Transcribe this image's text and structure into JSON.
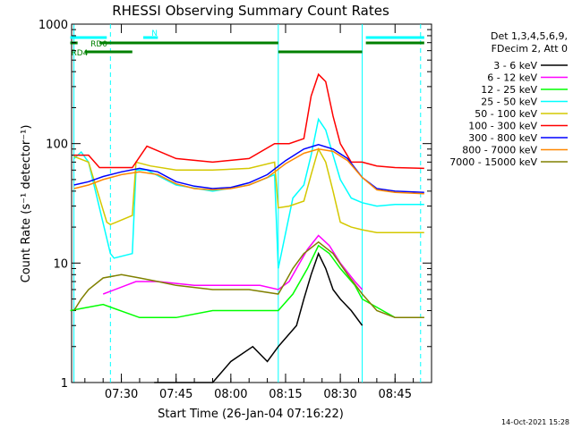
{
  "chart_data": {
    "type": "line",
    "title": "RHESSI Observing Summary Count Rates",
    "xlabel": "Start Time (26-Jan-04 07:16:22)",
    "ylabel": "Count Rate (s⁻¹ detector⁻¹)",
    "yscale": "log",
    "ylim": [
      1,
      1000
    ],
    "xlim": [
      "07:16:22",
      "08:55:00"
    ],
    "x_ticks": [
      "07:30",
      "07:45",
      "08:00",
      "08:15",
      "08:30",
      "08:45"
    ],
    "y_ticks": [
      "1",
      "10",
      "100",
      "1000"
    ],
    "grid": false,
    "legend_position": "right",
    "legend_header": [
      "Det 1,3,4,5,6,9,",
      "FDecim 2, Att 0"
    ],
    "series": [
      {
        "name": "3 - 6 keV",
        "color": "#000000",
        "x": [
          "07:16",
          "07:25",
          "07:34",
          "07:39",
          "07:55",
          "08:00",
          "08:06",
          "08:10",
          "08:13",
          "08:18",
          "08:20",
          "08:22",
          "08:24",
          "08:26",
          "08:28",
          "08:30",
          "08:33",
          "08:36"
        ],
        "y": [
          null,
          null,
          null,
          1,
          1,
          1.5,
          2.0,
          1.5,
          2.0,
          3.0,
          5.0,
          8.0,
          12.0,
          9.0,
          6.0,
          5.0,
          4.0,
          3.0
        ]
      },
      {
        "name": "6 - 12 keV",
        "color": "#ff00ff",
        "x": [
          "07:16",
          "07:25",
          "07:34",
          "07:40",
          "07:50",
          "08:00",
          "08:08",
          "08:13",
          "08:16",
          "08:18",
          "08:21",
          "08:24",
          "08:27",
          "08:30",
          "08:34",
          "08:36",
          "08:40"
        ],
        "y": [
          null,
          5.5,
          7.0,
          7.0,
          6.5,
          6.5,
          6.5,
          6.0,
          7.0,
          9.0,
          13.0,
          17.0,
          14.0,
          10.0,
          7.0,
          6.0,
          null
        ]
      },
      {
        "name": "12 - 25 keV",
        "color": "#00ff00",
        "x": [
          "07:16",
          "07:25",
          "07:35",
          "07:45",
          "07:55",
          "08:05",
          "08:13",
          "08:17",
          "08:21",
          "08:24",
          "08:27",
          "08:30",
          "08:34",
          "08:36",
          "08:45",
          "08:53"
        ],
        "y": [
          4.0,
          4.5,
          3.5,
          3.5,
          4.0,
          4.0,
          4.0,
          5.5,
          9.0,
          14.0,
          12.0,
          9.0,
          6.5,
          5.0,
          3.5,
          3.5
        ]
      },
      {
        "name": "25 - 50 keV",
        "color": "#00ffff",
        "x": [
          "07:17",
          "07:19",
          "07:21",
          "07:27",
          "07:28",
          "07:33",
          "07:34",
          "07:37",
          "07:45",
          "07:55",
          "08:05",
          "08:12",
          "08:13",
          "08:17",
          "08:20",
          "08:22",
          "08:24",
          "08:26",
          "08:28",
          "08:30",
          "08:33",
          "08:36",
          "08:40",
          "08:45",
          "08:53"
        ],
        "y": [
          75,
          85,
          70,
          12,
          11,
          12,
          60,
          60,
          45,
          40,
          45,
          55,
          9,
          35,
          45,
          80,
          160,
          130,
          80,
          50,
          35,
          32,
          30,
          31,
          31
        ]
      },
      {
        "name": "50 - 100 keV",
        "color": "#d4c800",
        "x": [
          "07:17",
          "07:21",
          "07:26",
          "07:27",
          "07:33",
          "07:34",
          "07:38",
          "07:45",
          "07:55",
          "08:05",
          "08:12",
          "08:13",
          "08:16",
          "08:20",
          "08:22",
          "08:24",
          "08:26",
          "08:28",
          "08:30",
          "08:33",
          "08:36",
          "08:40",
          "08:45",
          "08:53"
        ],
        "y": [
          78,
          70,
          22,
          21,
          25,
          70,
          65,
          60,
          60,
          62,
          70,
          29,
          30,
          33,
          55,
          90,
          70,
          40,
          22,
          20,
          19,
          18,
          18,
          18
        ]
      },
      {
        "name": "100 - 300 keV",
        "color": "#ff0000",
        "x": [
          "07:17",
          "07:21",
          "07:24",
          "07:27",
          "07:33",
          "07:37",
          "07:45",
          "07:55",
          "08:05",
          "08:12",
          "08:13",
          "08:16",
          "08:20",
          "08:22",
          "08:24",
          "08:26",
          "08:28",
          "08:30",
          "08:33",
          "08:36",
          "08:40",
          "08:45",
          "08:53"
        ],
        "y": [
          80,
          80,
          63,
          63,
          63,
          95,
          75,
          70,
          75,
          100,
          100,
          100,
          110,
          250,
          380,
          330,
          170,
          100,
          70,
          70,
          65,
          63,
          62
        ]
      },
      {
        "name": "300 - 800 keV",
        "color": "#0000ff",
        "x": [
          "07:17",
          "07:21",
          "07:25",
          "07:30",
          "07:35",
          "07:40",
          "07:45",
          "07:50",
          "07:55",
          "08:00",
          "08:05",
          "08:10",
          "08:15",
          "08:20",
          "08:24",
          "08:28",
          "08:32",
          "08:36",
          "08:40",
          "08:45",
          "08:53"
        ],
        "y": [
          45,
          48,
          53,
          58,
          62,
          58,
          48,
          44,
          42,
          43,
          47,
          55,
          72,
          90,
          98,
          90,
          75,
          52,
          42,
          40,
          39
        ]
      },
      {
        "name": "800 - 7000 keV",
        "color": "#ff8800",
        "x": [
          "07:17",
          "07:21",
          "07:25",
          "07:30",
          "07:35",
          "07:40",
          "07:45",
          "07:50",
          "07:55",
          "08:00",
          "08:05",
          "08:10",
          "08:15",
          "08:20",
          "08:24",
          "08:28",
          "08:32",
          "08:36",
          "08:40",
          "08:45",
          "08:53"
        ],
        "y": [
          42,
          45,
          50,
          55,
          58,
          55,
          46,
          42,
          41,
          42,
          45,
          52,
          68,
          83,
          90,
          86,
          72,
          52,
          41,
          39,
          38
        ]
      },
      {
        "name": "7000 - 15000 keV",
        "color": "#808000",
        "x": [
          "07:17",
          "07:19",
          "07:21",
          "07:25",
          "07:30",
          "07:35",
          "07:40",
          "07:45",
          "07:55",
          "08:05",
          "08:13",
          "08:15",
          "08:17",
          "08:20",
          "08:24",
          "08:28",
          "08:32",
          "08:36",
          "08:40",
          "08:45",
          "08:53"
        ],
        "y": [
          4.0,
          5.0,
          6.0,
          7.5,
          8.0,
          7.5,
          7.0,
          6.5,
          6.0,
          6.0,
          5.5,
          7.0,
          9.0,
          12.0,
          15.0,
          12.0,
          8.0,
          5.5,
          4.0,
          3.5,
          3.5
        ]
      }
    ],
    "flag_bars": [
      {
        "label": "N",
        "color": "#00ffff",
        "segments": [
          [
            "07:16",
            "07:26"
          ],
          [
            "07:36",
            "07:40"
          ],
          [
            "08:37",
            "08:53"
          ]
        ]
      },
      {
        "label": "RD0",
        "color": "#008000",
        "segments": [
          [
            "07:16",
            "07:18"
          ],
          [
            "07:24",
            "08:13"
          ],
          [
            "08:37",
            "08:53"
          ]
        ]
      },
      {
        "label": "RD4",
        "color": "#008000",
        "segments": [
          [
            "07:20",
            "07:33"
          ],
          [
            "08:13",
            "08:36"
          ]
        ]
      }
    ],
    "vertical_markers": {
      "solid": [
        "07:17",
        "08:13",
        "08:36"
      ],
      "dashed": [
        "07:27",
        "08:52"
      ],
      "color": "#00ffff"
    }
  },
  "footer": {
    "timestamp": "14-Oct-2021 15:28"
  }
}
